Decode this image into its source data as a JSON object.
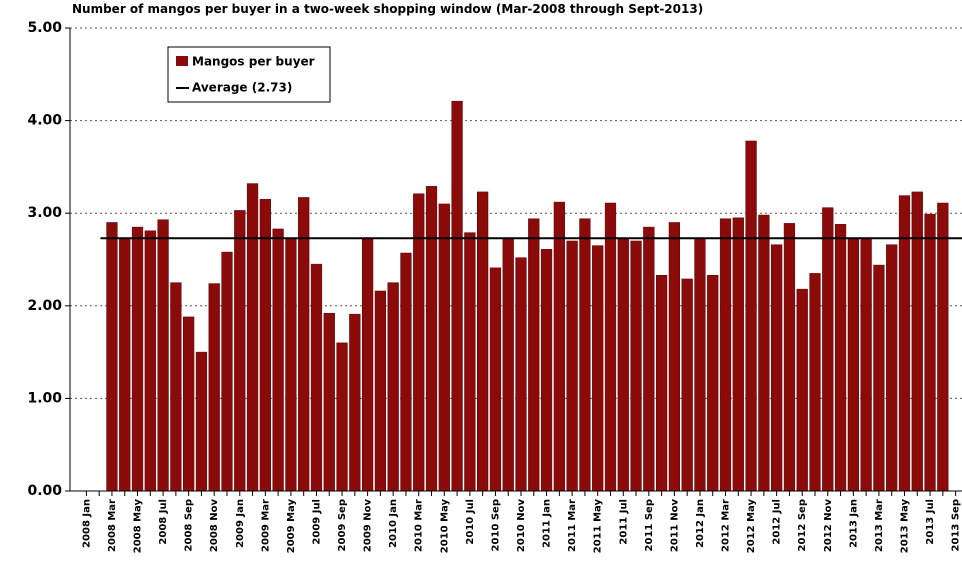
{
  "chart_data": {
    "type": "bar",
    "title": "Number of mangos per buyer in a two-week shopping window (Mar-2008 through Sept-2013)",
    "categories": [
      "2008 Jan",
      null,
      "2008 Mar",
      null,
      "2008 May",
      null,
      "2008 Jul",
      null,
      "2008 Sep",
      null,
      "2008 Nov",
      null,
      "2009 Jan",
      null,
      "2009 Mar",
      null,
      "2009 May",
      null,
      "2009 Jul",
      null,
      "2009 Sep",
      null,
      "2009 Nov",
      null,
      "2010 Jan",
      null,
      "2010 Mar",
      null,
      "2010 May",
      null,
      "2010 Jul",
      null,
      "2010 Sep",
      null,
      "2010 Nov",
      null,
      "2011 Jan",
      null,
      "2011 Mar",
      null,
      "2011 May",
      null,
      "2011 Jul",
      null,
      "2011 Sep",
      null,
      "2011 Nov",
      null,
      "2012 Jan",
      null,
      "2012 Mar",
      null,
      "2012 May",
      null,
      "2012 Jul",
      null,
      "2012 Sep",
      null,
      "2012 Nov",
      null,
      "2013 Jan",
      null,
      "2013 Mar",
      null,
      "2013 May",
      null,
      "2013 Jul",
      null,
      "2013 Sep"
    ],
    "series": [
      {
        "name": "Mangos per buyer",
        "color": "#8b0a0a",
        "values": [
          null,
          null,
          2.9,
          2.73,
          2.85,
          2.81,
          2.93,
          2.25,
          1.88,
          1.5,
          2.24,
          2.58,
          3.03,
          3.32,
          3.15,
          2.83,
          2.73,
          3.17,
          2.45,
          1.92,
          1.6,
          1.91,
          2.73,
          2.16,
          2.25,
          2.57,
          3.21,
          3.29,
          3.1,
          4.21,
          2.79,
          3.23,
          2.41,
          2.73,
          2.52,
          2.94,
          2.61,
          3.12,
          2.7,
          2.94,
          2.65,
          3.11,
          2.73,
          2.7,
          2.85,
          2.33,
          2.9,
          2.29,
          2.73,
          2.33,
          2.94,
          2.95,
          3.78,
          2.98,
          2.66,
          2.89,
          2.18,
          2.35,
          3.06,
          2.88,
          2.73,
          2.73,
          2.44,
          2.66,
          3.19,
          3.23,
          2.99,
          3.11,
          null
        ]
      }
    ],
    "average": {
      "name": "Average (2.73)",
      "value": 2.73,
      "color": "#000000"
    },
    "ylim": [
      0,
      5
    ],
    "yticks": [
      {
        "value": 0,
        "label": "0.00"
      },
      {
        "value": 1,
        "label": "1.00"
      },
      {
        "value": 2,
        "label": "2.00"
      },
      {
        "value": 3,
        "label": "3.00"
      },
      {
        "value": 4,
        "label": "4.00"
      },
      {
        "value": 5,
        "label": "5.00"
      }
    ],
    "grid": true
  }
}
